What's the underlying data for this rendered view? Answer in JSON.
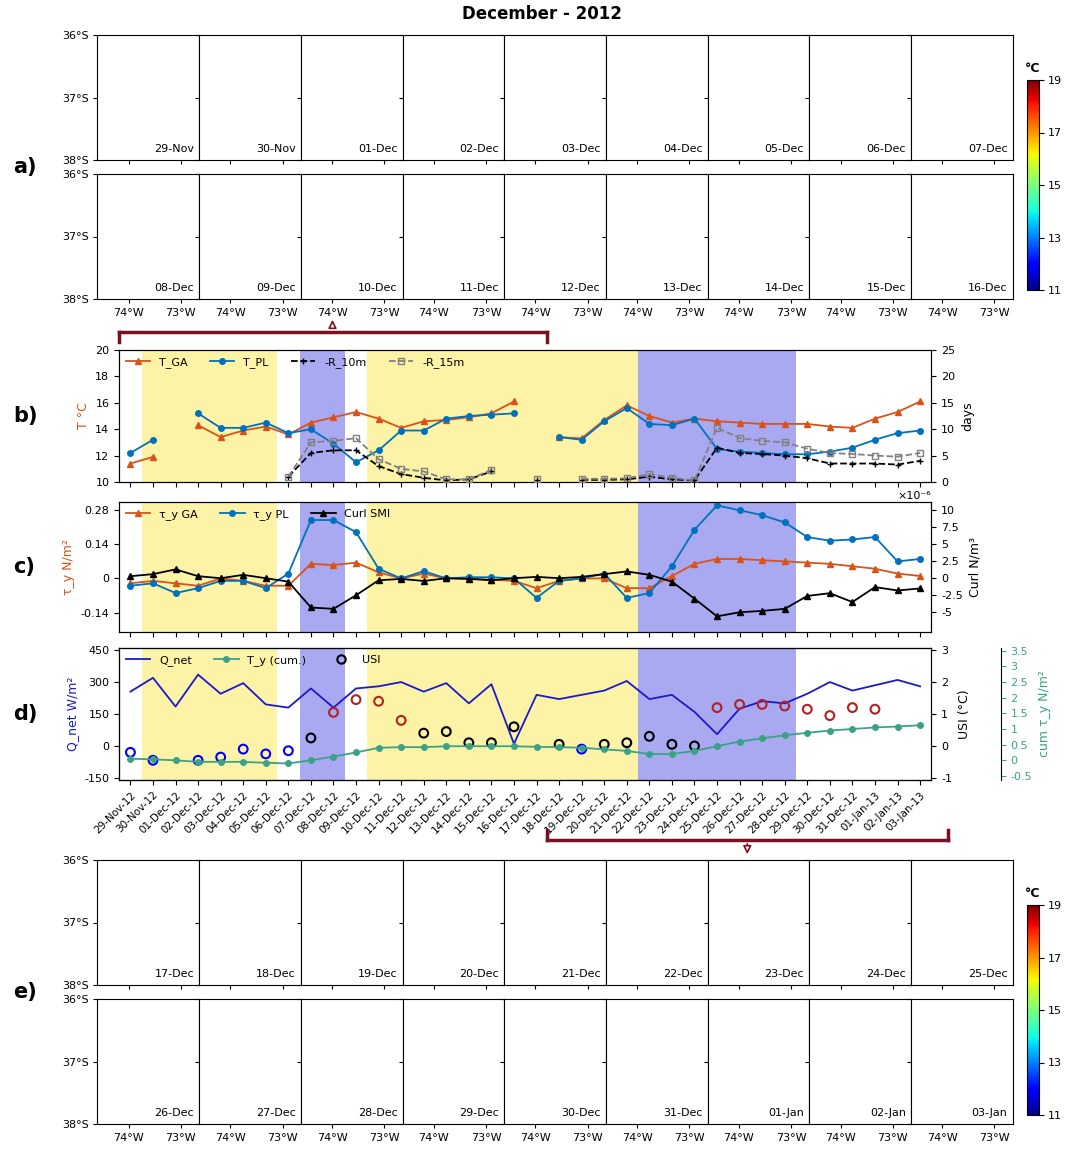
{
  "title": "December - 2012",
  "shaded_periods": [
    {
      "start": "30-Nov-12",
      "end": "05-Dec-12",
      "color": "#fdf3a6"
    },
    {
      "start": "07-Dec-12",
      "end": "08-Dec-12",
      "color": "#a9a9f2"
    },
    {
      "start": "10-Dec-12",
      "end": "21-Dec-12",
      "color": "#fdf3a6"
    },
    {
      "start": "22-Dec-12",
      "end": "28-Dec-12",
      "color": "#a9a9f2"
    }
  ],
  "chart_data": [
    {
      "type": "map",
      "panel_label": "a)",
      "dates": [
        "29-Nov",
        "30-Nov",
        "01-Dec",
        "02-Dec",
        "03-Dec",
        "04-Dec",
        "05-Dec",
        "06-Dec",
        "07-Dec",
        "08-Dec",
        "09-Dec",
        "10-Dec",
        "11-Dec",
        "12-Dec",
        "13-Dec",
        "14-Dec",
        "15-Dec",
        "16-Dec"
      ],
      "xlim": [
        -74.6,
        -72.65
      ],
      "xticks": [
        {
          "value": -74,
          "label": "74°W"
        },
        {
          "value": -73,
          "label": "73°W"
        }
      ],
      "ylim": [
        -38,
        -36
      ],
      "yticks": [
        {
          "value": -38,
          "label": "38°S"
        },
        {
          "value": -37,
          "label": "37°S"
        },
        {
          "value": -36,
          "label": "36°S"
        }
      ],
      "colorbar": {
        "label": "°C",
        "lim": [
          11,
          19
        ],
        "ticks": [
          11,
          13,
          15,
          17,
          19
        ]
      }
    },
    {
      "type": "line",
      "panel_label": "b)",
      "tick_labels": "y",
      "legend": "upper left",
      "categories": [
        "29-Nov-12",
        "30-Nov-12",
        "01-Dec-12",
        "02-Dec-12",
        "03-Dec-12",
        "04-Dec-12",
        "05-Dec-12",
        "06-Dec-12",
        "07-Dec-12",
        "08-Dec-12",
        "09-Dec-12",
        "10-Dec-12",
        "11-Dec-12",
        "12-Dec-12",
        "13-Dec-12",
        "14-Dec-12",
        "15-Dec-12",
        "16-Dec-12",
        "17-Dec-12",
        "18-Dec-12",
        "19-Dec-12",
        "20-Dec-12",
        "21-Dec-12",
        "22-Dec-12",
        "23-Dec-12",
        "24-Dec-12",
        "25-Dec-12",
        "26-Dec-12",
        "27-Dec-12",
        "28-Dec-12",
        "29-Dec-12",
        "30-Dec-12",
        "31-Dec-12",
        "01-Jan-13",
        "02-Jan-13",
        "03-Jan-13"
      ],
      "ylabel": "T °C",
      "ylim": [
        10,
        20
      ],
      "yticks": [
        10,
        12,
        14,
        16,
        18,
        20
      ],
      "y2label": "days",
      "y2lim": [
        0,
        25
      ],
      "y2ticks": [
        0,
        5,
        10,
        15,
        20,
        25
      ],
      "series": [
        {
          "name": "T_GA",
          "color": "#d95319",
          "marker": "triangle",
          "line_style": "solid",
          "axis": "y",
          "values": [
            11.4,
            11.9,
            null,
            14.3,
            13.4,
            13.9,
            14.2,
            13.6,
            14.5,
            14.9,
            15.3,
            14.8,
            14.1,
            14.6,
            14.7,
            14.9,
            15.2,
            16.1,
            null,
            13.4,
            13.3,
            14.7,
            15.8,
            15.0,
            14.5,
            14.8,
            14.6,
            14.5,
            14.4,
            14.4,
            14.4,
            14.2,
            14.1,
            14.8,
            15.3,
            16.1
          ]
        },
        {
          "name": "T_PL",
          "color": "#0072bd",
          "marker": "circle",
          "line_style": "solid",
          "axis": "y",
          "values": [
            12.2,
            13.2,
            null,
            15.2,
            14.1,
            14.1,
            14.5,
            13.7,
            14.0,
            12.9,
            11.5,
            12.4,
            13.9,
            13.9,
            14.8,
            15.0,
            15.1,
            15.2,
            null,
            13.4,
            13.2,
            14.6,
            15.6,
            14.4,
            14.3,
            14.8,
            12.5,
            12.3,
            12.2,
            12.1,
            12.1,
            12.3,
            12.6,
            13.2,
            13.7,
            13.9
          ]
        },
        {
          "name": "-R_10m",
          "color": "#000000",
          "marker": "plus",
          "line_style": "dashed",
          "axis": "y2",
          "values": [
            null,
            null,
            null,
            null,
            null,
            null,
            null,
            1.0,
            5.5,
            6.0,
            6.0,
            3.0,
            1.5,
            0.8,
            0.3,
            0.5,
            2.0,
            null,
            0.4,
            null,
            0.4,
            0.4,
            0.5,
            1.0,
            0.5,
            0.3,
            6.5,
            5.5,
            5.3,
            5.0,
            4.5,
            3.5,
            3.5,
            3.5,
            3.3,
            4.0
          ]
        },
        {
          "name": "-R_15m",
          "color": "#808080",
          "marker": "square",
          "line_style": "dashed",
          "axis": "y2",
          "values": [
            null,
            null,
            null,
            null,
            null,
            null,
            null,
            1.0,
            7.5,
            7.8,
            8.3,
            4.3,
            2.5,
            2.0,
            0.5,
            0.5,
            2.3,
            null,
            0.6,
            null,
            0.6,
            0.6,
            0.7,
            1.5,
            0.8,
            0.3,
            10.3,
            8.3,
            7.8,
            7.5,
            6.3,
            5.5,
            5.3,
            5.0,
            4.8,
            5.5
          ]
        }
      ]
    },
    {
      "type": "line",
      "panel_label": "c)",
      "tick_labels": "y",
      "legend": "upper left",
      "categories": [
        "29-Nov-12",
        "30-Nov-12",
        "01-Dec-12",
        "02-Dec-12",
        "03-Dec-12",
        "04-Dec-12",
        "05-Dec-12",
        "06-Dec-12",
        "07-Dec-12",
        "08-Dec-12",
        "09-Dec-12",
        "10-Dec-12",
        "11-Dec-12",
        "12-Dec-12",
        "13-Dec-12",
        "14-Dec-12",
        "15-Dec-12",
        "16-Dec-12",
        "17-Dec-12",
        "18-Dec-12",
        "19-Dec-12",
        "20-Dec-12",
        "21-Dec-12",
        "22-Dec-12",
        "23-Dec-12",
        "24-Dec-12",
        "25-Dec-12",
        "26-Dec-12",
        "27-Dec-12",
        "28-Dec-12",
        "29-Dec-12",
        "30-Dec-12",
        "31-Dec-12",
        "01-Jan-13",
        "02-Jan-13",
        "03-Jan-13"
      ],
      "ylabel": "τ_y N/m²",
      "ylim": [
        -0.22,
        0.314
      ],
      "yticks": [
        -0.14,
        0,
        0.14,
        0.28
      ],
      "y2label": "Curl N/m³",
      "y2lim": [
        -7.9,
        11.2
      ],
      "y2ticks": [
        -5,
        -2.5,
        0,
        2.5,
        5,
        7.5,
        10
      ],
      "y2_offset_text": "×10⁻⁶",
      "series": [
        {
          "name": "τ_y GA",
          "color": "#d95319",
          "marker": "triangle",
          "line_style": "solid",
          "axis": "y",
          "values": [
            -0.02,
            -0.01,
            -0.02,
            -0.03,
            0.0,
            -0.01,
            -0.03,
            -0.03,
            0.06,
            0.055,
            0.065,
            0.025,
            0.0,
            0.02,
            0.0,
            0.0,
            -0.005,
            -0.01,
            -0.04,
            -0.01,
            0.0,
            0.0,
            -0.04,
            -0.04,
            0.01,
            0.06,
            0.08,
            0.08,
            0.075,
            0.07,
            0.065,
            0.06,
            0.05,
            0.04,
            0.02,
            0.01
          ]
        },
        {
          "name": "τ_y PL",
          "color": "#0072bd",
          "marker": "circle",
          "line_style": "solid",
          "axis": "y",
          "values": [
            -0.03,
            -0.02,
            -0.06,
            -0.04,
            -0.01,
            -0.01,
            -0.04,
            0.02,
            0.24,
            0.24,
            0.19,
            0.04,
            0.0,
            0.03,
            0.0,
            0.005,
            0.005,
            0.0,
            -0.08,
            -0.01,
            0.0,
            0.02,
            -0.08,
            -0.06,
            0.05,
            0.2,
            0.3,
            0.28,
            0.26,
            0.23,
            0.17,
            0.155,
            0.16,
            0.17,
            0.07,
            0.08
          ]
        },
        {
          "name": "Curl SMI",
          "color": "#000000",
          "marker": "triangle",
          "line_style": "solid",
          "axis": "y2",
          "values": [
            0.3,
            0.6,
            1.3,
            0.3,
            0.0,
            0.5,
            0.0,
            -0.5,
            -4.3,
            -4.5,
            -2.5,
            -0.3,
            -0.1,
            -0.4,
            0.0,
            -0.1,
            -0.3,
            0.0,
            0.2,
            0.0,
            0.2,
            0.6,
            1.0,
            0.5,
            -0.5,
            -3.0,
            -5.6,
            -5.0,
            -4.8,
            -4.5,
            -2.6,
            -2.2,
            -3.5,
            -1.3,
            -1.8,
            -1.5
          ]
        }
      ]
    },
    {
      "type": "line",
      "panel_label": "d)",
      "legend": "upper left",
      "categories": [
        "29-Nov-12",
        "30-Nov-12",
        "01-Dec-12",
        "02-Dec-12",
        "03-Dec-12",
        "04-Dec-12",
        "05-Dec-12",
        "06-Dec-12",
        "07-Dec-12",
        "08-Dec-12",
        "09-Dec-12",
        "10-Dec-12",
        "11-Dec-12",
        "12-Dec-12",
        "13-Dec-12",
        "14-Dec-12",
        "15-Dec-12",
        "16-Dec-12",
        "17-Dec-12",
        "18-Dec-12",
        "19-Dec-12",
        "20-Dec-12",
        "21-Dec-12",
        "22-Dec-12",
        "23-Dec-12",
        "24-Dec-12",
        "25-Dec-12",
        "26-Dec-12",
        "27-Dec-12",
        "28-Dec-12",
        "29-Dec-12",
        "30-Dec-12",
        "31-Dec-12",
        "01-Jan-13",
        "02-Jan-13",
        "03-Jan-13"
      ],
      "ylabel": "Q_net W/m²",
      "ylim": [
        -160,
        460
      ],
      "yticks": [
        -150,
        0,
        150,
        300,
        450
      ],
      "y2label": "USI (°C)",
      "y2lim": [
        -1.067,
        3.067
      ],
      "y2ticks": [
        -1,
        0,
        1,
        2,
        3
      ],
      "y3label": "cum τ_y N/m²",
      "y3lim": [
        -0.63,
        3.59
      ],
      "y3ticks": [
        -0.5,
        0,
        0.5,
        1,
        1.5,
        2,
        2.5,
        3,
        3.5
      ],
      "series": [
        {
          "name": "Q_net",
          "color": "#1a1acc",
          "marker": "none",
          "line_style": "solid",
          "axis": "y",
          "values": [
            255,
            320,
            185,
            335,
            245,
            295,
            195,
            180,
            270,
            180,
            270,
            280,
            300,
            255,
            295,
            200,
            290,
            10,
            240,
            220,
            240,
            260,
            305,
            220,
            240,
            160,
            55,
            175,
            210,
            200,
            245,
            300,
            260,
            285,
            310,
            280
          ]
        },
        {
          "name": "T_y (cum.)",
          "color": "#3aa387",
          "marker": "circle",
          "line_style": "solid",
          "axis": "y3",
          "values": [
            0.05,
            0.03,
            0.0,
            -0.05,
            -0.05,
            -0.05,
            -0.08,
            -0.1,
            0.0,
            0.12,
            0.25,
            0.4,
            0.42,
            0.42,
            0.45,
            0.45,
            0.45,
            0.45,
            0.43,
            0.42,
            0.4,
            0.35,
            0.3,
            0.2,
            0.2,
            0.3,
            0.45,
            0.6,
            0.7,
            0.8,
            0.88,
            0.95,
            1.0,
            1.05,
            1.08,
            1.12
          ]
        },
        {
          "name": "USI",
          "type": "scatter",
          "color": "#000000",
          "marker": "circle",
          "axis": "y2",
          "values": [
            -0.2,
            -0.45,
            null,
            -0.45,
            -0.35,
            -0.1,
            -0.25,
            -0.15,
            0.25,
            1.05,
            1.45,
            1.4,
            0.8,
            0.4,
            0.45,
            0.1,
            0.1,
            0.6,
            null,
            0.05,
            -0.1,
            0.05,
            0.1,
            0.3,
            0.05,
            0.0,
            1.2,
            1.3,
            1.3,
            1.25,
            1.15,
            0.95,
            1.2,
            1.15,
            null,
            null
          ],
          "colors": [
            "#0000ff",
            "#0000ff",
            null,
            "#0000ff",
            "#0000ff",
            "#0000ff",
            "#0000ff",
            "#0000ff",
            "#000000",
            "#b22222",
            "#b22222",
            "#b22222",
            "#b22222",
            "#000000",
            "#000000",
            "#000000",
            "#000000",
            "#000000",
            null,
            "#000000",
            "#0000ff",
            "#000000",
            "#000000",
            "#000000",
            "#000000",
            "#000000",
            "#b22222",
            "#b22222",
            "#b22222",
            "#b22222",
            "#b22222",
            "#b22222",
            "#b22222",
            "#b22222",
            null,
            null
          ]
        }
      ]
    },
    {
      "type": "map",
      "panel_label": "e)",
      "dates": [
        "17-Dec",
        "18-Dec",
        "19-Dec",
        "20-Dec",
        "21-Dec",
        "22-Dec",
        "23-Dec",
        "24-Dec",
        "25-Dec",
        "26-Dec",
        "27-Dec",
        "28-Dec",
        "29-Dec",
        "30-Dec",
        "31-Dec",
        "01-Jan",
        "02-Jan",
        "03-Jan"
      ],
      "xlim": [
        -74.6,
        -72.65
      ],
      "xticks": [
        {
          "value": -74,
          "label": "74°W"
        },
        {
          "value": -73,
          "label": "73°W"
        }
      ],
      "ylim": [
        -38,
        -36
      ],
      "yticks": [
        {
          "value": -38,
          "label": "38°S"
        },
        {
          "value": -37,
          "label": "37°S"
        },
        {
          "value": -36,
          "label": "36°S"
        }
      ],
      "colorbar": {
        "label": "°C",
        "lim": [
          11,
          19
        ],
        "ticks": [
          11,
          13,
          15,
          17,
          19
        ]
      }
    }
  ]
}
